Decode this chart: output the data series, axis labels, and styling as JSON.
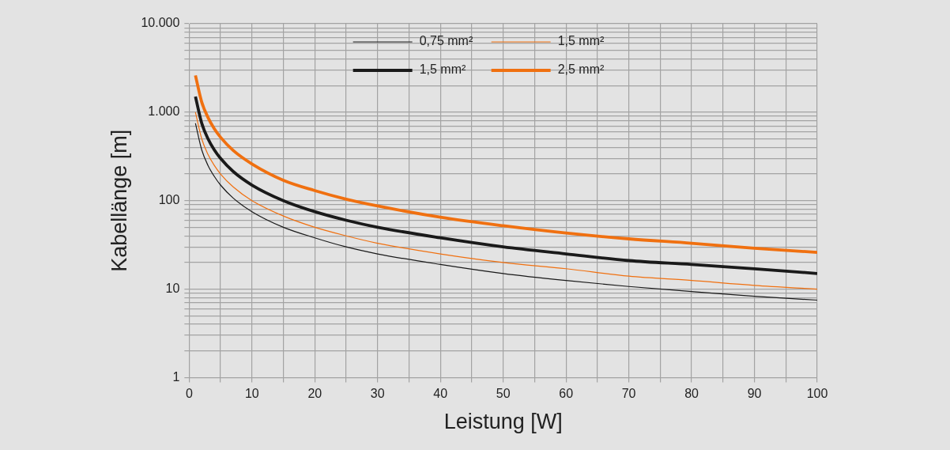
{
  "chart_data": {
    "type": "line",
    "xlabel": "Leistung [W]",
    "ylabel": "Kabellänge [m]",
    "x": [
      1,
      2,
      3,
      4,
      5,
      7,
      10,
      15,
      20,
      25,
      30,
      40,
      50,
      60,
      70,
      80,
      90,
      100
    ],
    "series": [
      {
        "name": "0,75 mm²",
        "color": "#1a1a1a",
        "values": [
          750,
          375,
          250,
          188,
          150,
          107,
          75,
          50,
          38,
          30,
          25,
          19,
          15,
          12.5,
          10.7,
          9.4,
          8.3,
          7.5
        ]
      },
      {
        "name": "1,5 mm²",
        "color": "#f07010",
        "values": [
          1000,
          500,
          333,
          250,
          200,
          143,
          100,
          67,
          50,
          40,
          33,
          25,
          20,
          17,
          14,
          12.5,
          11,
          10
        ]
      },
      {
        "name": "1,5 mm²",
        "color": "#1a1a1a",
        "values": [
          1500,
          750,
          500,
          375,
          300,
          214,
          150,
          100,
          75,
          60,
          50,
          38,
          30,
          25,
          21,
          19,
          17,
          15
        ]
      },
      {
        "name": "2,5 mm²",
        "color": "#f07010",
        "values": [
          2600,
          1300,
          870,
          650,
          520,
          370,
          260,
          170,
          130,
          104,
          87,
          65,
          52,
          43,
          37,
          33,
          29,
          26
        ]
      }
    ],
    "log": "y",
    "xlim": [
      0,
      100
    ],
    "ylim": [
      1,
      10000
    ],
    "xticks": [
      0,
      {
        "value": 5,
        "label": null
      },
      10,
      {
        "value": 15,
        "label": null
      },
      20,
      {
        "value": 25,
        "label": null
      },
      30,
      {
        "value": 35,
        "label": null
      },
      40,
      {
        "value": 45,
        "label": null
      },
      50,
      {
        "value": 55,
        "label": null
      },
      60,
      {
        "value": 65,
        "label": null
      },
      70,
      {
        "value": 75,
        "label": null
      },
      80,
      {
        "value": 85,
        "label": null
      },
      90,
      {
        "value": 95,
        "label": null
      },
      100
    ],
    "yticks": [
      1,
      {
        "value": 2,
        "label": null
      },
      {
        "value": 3,
        "label": null
      },
      {
        "value": 4,
        "label": null
      },
      {
        "value": 5,
        "label": null
      },
      {
        "value": 6,
        "label": null
      },
      {
        "value": 7,
        "label": null
      },
      {
        "value": 8,
        "label": null
      },
      {
        "value": 9,
        "label": null
      },
      10,
      {
        "value": 20,
        "label": null
      },
      {
        "value": 30,
        "label": null
      },
      {
        "value": 40,
        "label": null
      },
      {
        "value": 50,
        "label": null
      },
      {
        "value": 60,
        "label": null
      },
      {
        "value": 70,
        "label": null
      },
      {
        "value": 80,
        "label": null
      },
      {
        "value": 90,
        "label": null
      },
      100,
      {
        "value": 200,
        "label": null
      },
      {
        "value": 300,
        "label": null
      },
      {
        "value": 400,
        "label": null
      },
      {
        "value": 500,
        "label": null
      },
      {
        "value": 600,
        "label": null
      },
      {
        "value": 700,
        "label": null
      },
      {
        "value": 800,
        "label": null
      },
      {
        "value": 900,
        "label": null
      },
      {
        "value": 1000,
        "label": "1.000"
      },
      {
        "value": 2000,
        "label": null
      },
      {
        "value": 3000,
        "label": null
      },
      {
        "value": 4000,
        "label": null
      },
      {
        "value": 5000,
        "label": null
      },
      {
        "value": 6000,
        "label": null
      },
      {
        "value": 7000,
        "label": null
      },
      {
        "value": 8000,
        "label": null
      },
      {
        "value": 9000,
        "label": null
      },
      {
        "value": 10000,
        "label": "10.000"
      }
    ],
    "grid": true,
    "legend": "top",
    "marker": "none",
    "line_style": "solid"
  }
}
